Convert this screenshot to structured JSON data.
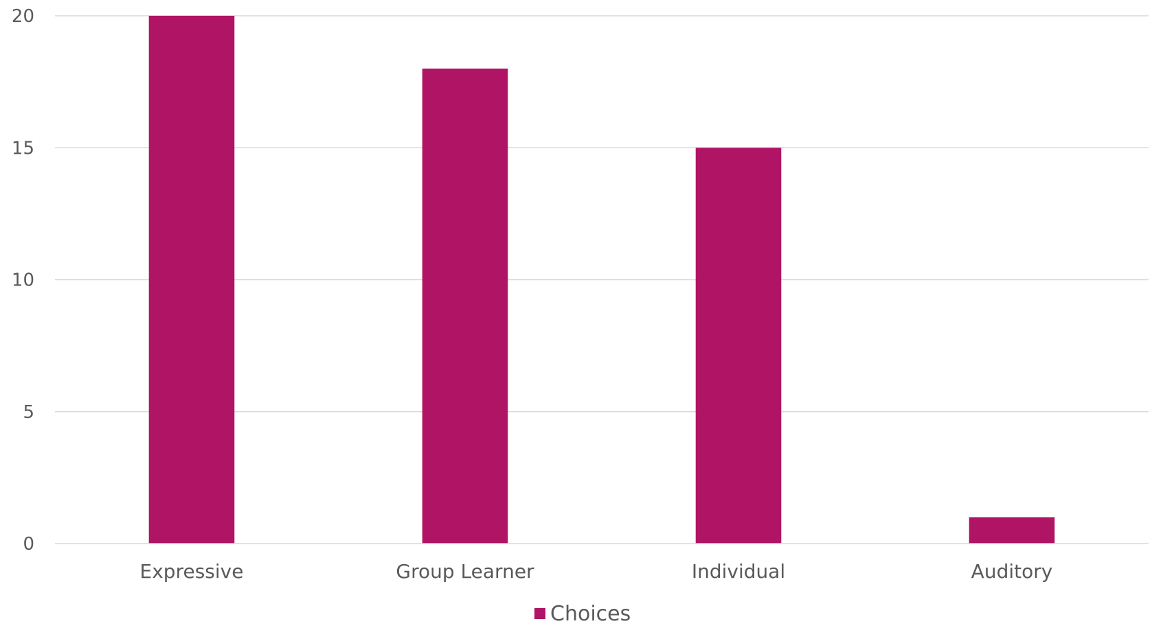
{
  "chart_data": {
    "type": "bar",
    "categories": [
      "Expressive",
      "Group Learner",
      "Individual",
      "Auditory"
    ],
    "series": [
      {
        "name": "Choices",
        "values": [
          20,
          18,
          15,
          1
        ],
        "color": "#B01464"
      }
    ],
    "ylim": [
      0,
      20
    ],
    "yticks": [
      "0",
      "5",
      "10",
      "15",
      "20"
    ],
    "grid": true,
    "legend": "bottom"
  }
}
